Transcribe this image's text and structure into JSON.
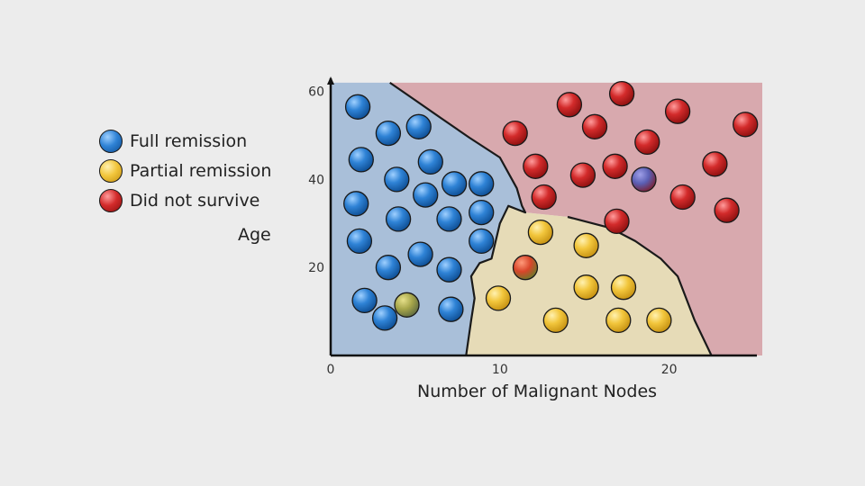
{
  "chart_data": {
    "type": "scatter",
    "xlabel": "Number of Malignant Nodes",
    "ylabel": "Age",
    "xlim": [
      0,
      25.5
    ],
    "ylim": [
      0,
      63
    ],
    "x_ticks": [
      0,
      10,
      20
    ],
    "y_ticks": [
      20,
      40,
      60
    ],
    "legend": {
      "placement": "left"
    },
    "colors": {
      "full": "#2f7fcf",
      "partial": "#f0c030",
      "died": "#cc2a2a",
      "region_full": "#a9bfd9",
      "region_partial": "#e6dbb7",
      "region_died": "#d8a9ae"
    },
    "series": [
      {
        "name": "Full remission",
        "key": "full",
        "points": [
          [
            1.6,
            56.5
          ],
          [
            3.4,
            50.5
          ],
          [
            5.2,
            52
          ],
          [
            1.8,
            44.5
          ],
          [
            3.9,
            40
          ],
          [
            5.9,
            44
          ],
          [
            1.5,
            34.5
          ],
          [
            5.6,
            36.5
          ],
          [
            7.3,
            39
          ],
          [
            8.9,
            39
          ],
          [
            4,
            31
          ],
          [
            7,
            31
          ],
          [
            8.9,
            32.5
          ],
          [
            1.7,
            26
          ],
          [
            3.4,
            20
          ],
          [
            5.3,
            23
          ],
          [
            7,
            19.5
          ],
          [
            8.9,
            26
          ],
          [
            2,
            12.5
          ],
          [
            3.2,
            8.5
          ],
          [
            7.1,
            10.5
          ]
        ]
      },
      {
        "name": "Partial remission",
        "key": "partial",
        "points": [
          [
            9.9,
            13
          ],
          [
            12.4,
            28
          ],
          [
            15.1,
            25
          ],
          [
            15.1,
            15.5
          ],
          [
            17.3,
            15.5
          ],
          [
            13.3,
            8
          ],
          [
            17,
            8
          ],
          [
            19.4,
            8
          ]
        ]
      },
      {
        "name": "Did not survive",
        "key": "died",
        "points": [
          [
            10.9,
            50.5
          ],
          [
            14.1,
            57
          ],
          [
            17.2,
            59.5
          ],
          [
            20.5,
            55.5
          ],
          [
            24.5,
            52.5
          ],
          [
            15.6,
            52
          ],
          [
            18.7,
            48.5
          ],
          [
            12.1,
            43
          ],
          [
            14.9,
            41
          ],
          [
            16.8,
            43
          ],
          [
            22.7,
            43.5
          ],
          [
            12.6,
            36
          ],
          [
            20.8,
            36
          ],
          [
            23.4,
            33
          ],
          [
            16.9,
            30.5
          ]
        ]
      },
      {
        "name": "",
        "key": "odd",
        "points": [
          [
            4.5,
            11.5,
            "mix-gy"
          ],
          [
            11.5,
            20,
            "mix-rb"
          ],
          [
            18.5,
            40,
            "mix-bl"
          ]
        ]
      }
    ],
    "regions": {
      "full": [
        [
          0,
          0
        ],
        [
          0,
          62
        ],
        [
          3.5,
          62
        ],
        [
          5,
          58
        ],
        [
          6.5,
          54
        ],
        [
          8.2,
          49.5
        ],
        [
          10,
          45
        ],
        [
          11,
          38
        ],
        [
          11.3,
          34
        ],
        [
          11.5,
          32.5
        ],
        [
          10.5,
          34
        ],
        [
          10,
          30
        ],
        [
          9.5,
          22
        ],
        [
          8.8,
          21
        ],
        [
          8.3,
          18
        ],
        [
          8.5,
          13
        ],
        [
          8.3,
          8
        ],
        [
          8,
          0
        ]
      ],
      "partial": [
        [
          8,
          0
        ],
        [
          8.3,
          8
        ],
        [
          8.5,
          13
        ],
        [
          8.3,
          18
        ],
        [
          8.8,
          21
        ],
        [
          9.5,
          22
        ],
        [
          10,
          30
        ],
        [
          10.5,
          34
        ],
        [
          11.5,
          32.5
        ],
        [
          14,
          31.5
        ],
        [
          16.5,
          29
        ],
        [
          18,
          26
        ],
        [
          19.5,
          22
        ],
        [
          20.5,
          18
        ],
        [
          21,
          13
        ],
        [
          21.5,
          8
        ],
        [
          22.5,
          0
        ]
      ],
      "died": [
        [
          3.5,
          62
        ],
        [
          25.5,
          62
        ],
        [
          25.5,
          0
        ],
        [
          22.5,
          0
        ],
        [
          21.5,
          8
        ],
        [
          21,
          13
        ],
        [
          20.5,
          18
        ],
        [
          19.5,
          22
        ],
        [
          18,
          26
        ],
        [
          16.5,
          29
        ],
        [
          14,
          31.5
        ],
        [
          11.5,
          32.5
        ],
        [
          11.3,
          34
        ],
        [
          11,
          38
        ],
        [
          10,
          45
        ],
        [
          8.2,
          49.5
        ],
        [
          6.5,
          54
        ],
        [
          5,
          58
        ]
      ]
    }
  },
  "legend_items": [
    {
      "label": "Full remission"
    },
    {
      "label": "Partial remission"
    },
    {
      "label": "Did not survive"
    }
  ]
}
